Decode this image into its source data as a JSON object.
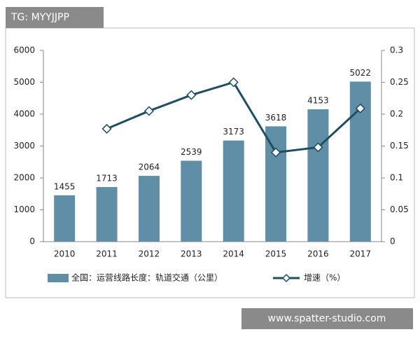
{
  "chart_data": {
    "type": "bar_line",
    "categories": [
      "2010",
      "2011",
      "2012",
      "2013",
      "2014",
      "2015",
      "2016",
      "2017"
    ],
    "series": [
      {
        "name": "全国：运营线路长度：轨道交通（公里）",
        "type": "bar",
        "color": "#5f8ea6",
        "values": [
          1455,
          1713,
          2064,
          2539,
          3173,
          3618,
          4153,
          5022
        ]
      },
      {
        "name": "增速（%）",
        "type": "line",
        "axis": "y2",
        "color": "#1f4e60",
        "values": [
          null,
          0.177,
          0.205,
          0.23,
          0.25,
          0.14,
          0.148,
          0.209
        ]
      }
    ],
    "ylim": [
      0,
      6000
    ],
    "yticks": [
      0,
      1000,
      2000,
      3000,
      4000,
      5000,
      6000
    ],
    "y2lim": [
      0,
      0.3
    ],
    "y2ticks": [
      0,
      0.05,
      0.1,
      0.15,
      0.2,
      0.25,
      0.3
    ],
    "legend": "bottom",
    "grid": false
  },
  "overlay": {
    "top_label": "TG: MYYJJPP",
    "bottom_label": "www.spatter-studio.com"
  }
}
